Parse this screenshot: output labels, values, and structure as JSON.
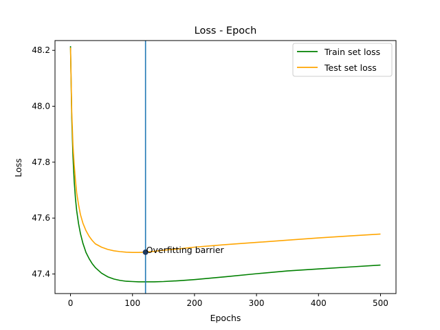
{
  "chart_data": {
    "type": "line",
    "title": "Loss - Epoch",
    "xlabel": "Epochs",
    "ylabel": "Loss",
    "xlim": [
      -25,
      525
    ],
    "ylim": [
      47.33,
      48.235
    ],
    "xticks": [
      0,
      100,
      200,
      300,
      400,
      500
    ],
    "xtick_labels": [
      "0",
      "100",
      "200",
      "300",
      "400",
      "500"
    ],
    "yticks": [
      47.4,
      47.6,
      47.8,
      48.0,
      48.2
    ],
    "ytick_labels": [
      "47.4",
      "47.6",
      "47.8",
      "48.0",
      "48.2"
    ],
    "grid": false,
    "legend_position": "top-right",
    "series": [
      {
        "name": "Train set loss",
        "color": "#008000",
        "x": [
          0,
          2,
          4,
          6,
          8,
          10,
          13,
          16,
          20,
          25,
          30,
          35,
          40,
          50,
          60,
          70,
          80,
          90,
          100,
          110,
          120,
          135,
          150,
          175,
          200,
          250,
          300,
          350,
          400,
          450,
          500
        ],
        "y": [
          48.215,
          47.96,
          47.82,
          47.73,
          47.67,
          47.626,
          47.58,
          47.545,
          47.51,
          47.477,
          47.455,
          47.437,
          47.423,
          47.403,
          47.39,
          47.382,
          47.377,
          47.374,
          47.373,
          47.372,
          47.372,
          47.372,
          47.373,
          47.376,
          47.38,
          47.39,
          47.401,
          47.411,
          47.418,
          47.425,
          47.432
        ]
      },
      {
        "name": "Test set loss",
        "color": "#ffa500",
        "x": [
          0,
          2,
          4,
          6,
          8,
          10,
          13,
          16,
          20,
          25,
          30,
          35,
          40,
          50,
          60,
          70,
          80,
          90,
          100,
          110,
          120,
          135,
          150,
          175,
          200,
          250,
          300,
          350,
          400,
          450,
          500
        ],
        "y": [
          48.21,
          47.98,
          47.86,
          47.79,
          47.735,
          47.69,
          47.648,
          47.613,
          47.582,
          47.555,
          47.535,
          47.52,
          47.508,
          47.496,
          47.488,
          47.483,
          47.48,
          47.478,
          47.477,
          47.477,
          47.478,
          47.481,
          47.485,
          47.49,
          47.496,
          47.505,
          47.513,
          47.521,
          47.529,
          47.536,
          47.543
        ]
      }
    ],
    "vline": {
      "x": 121,
      "color": "#1f77b4"
    },
    "annotation": {
      "text": "Overfitting barrier",
      "x": 121,
      "y": 47.478,
      "marker_color": "#1f3a5f"
    }
  }
}
